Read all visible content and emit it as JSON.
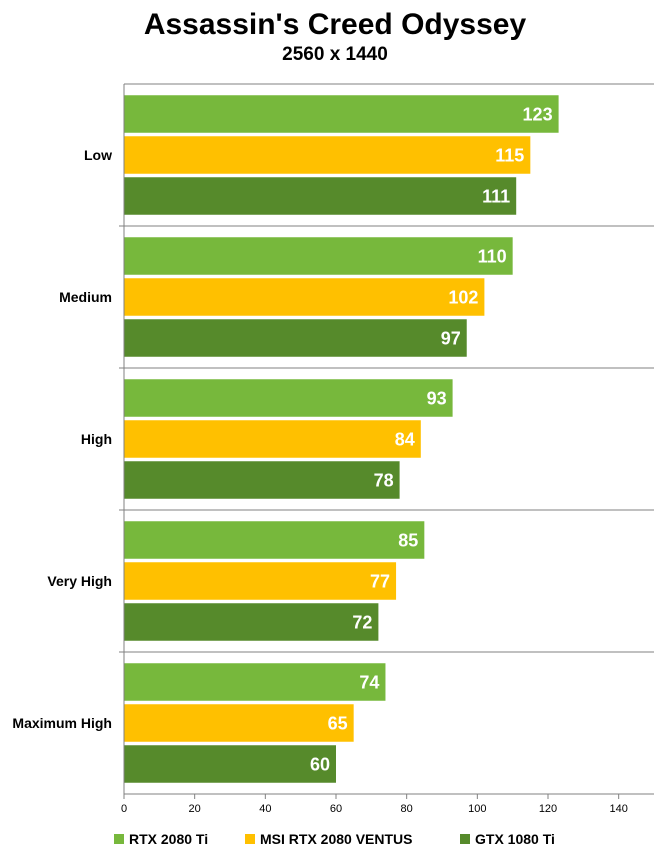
{
  "chart_data": {
    "type": "bar",
    "orientation": "horizontal",
    "title": "Assassin's Creed Odyssey",
    "subtitle": "2560 x 1440",
    "categories": [
      "Low",
      "Medium",
      "High",
      "Very High",
      "Maximum High"
    ],
    "series": [
      {
        "name": "RTX 2080 Ti",
        "color": "#77b83c",
        "values": [
          123,
          110,
          93,
          85,
          74
        ]
      },
      {
        "name": "MSI RTX 2080 VENTUS",
        "color": "#ffc000",
        "values": [
          115,
          102,
          84,
          77,
          65
        ]
      },
      {
        "name": "GTX 1080 Ti",
        "color": "#568a2b",
        "values": [
          111,
          97,
          78,
          72,
          60
        ]
      }
    ],
    "xlim": [
      0,
      150
    ],
    "xticks": [
      0,
      20,
      40,
      60,
      80,
      100,
      120,
      140
    ],
    "grid": "horizontal-separators",
    "legend_position": "bottom"
  }
}
